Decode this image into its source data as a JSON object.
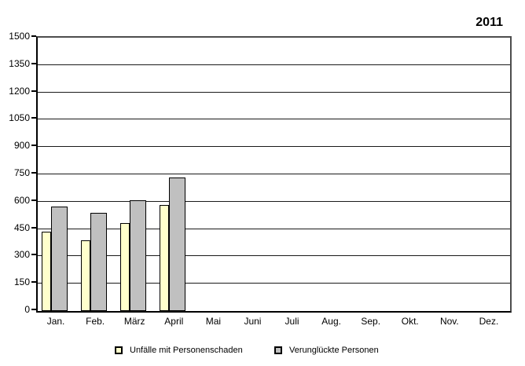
{
  "chart_data": {
    "type": "bar",
    "title": "2011",
    "categories": [
      "Jan.",
      "Feb.",
      "März",
      "April",
      "Mai",
      "Juni",
      "Juli",
      "Aug.",
      "Sep.",
      "Okt.",
      "Nov.",
      "Dez."
    ],
    "series": [
      {
        "name": "Unfälle mit Personenschaden",
        "color": "#FFFFCC",
        "values": [
          435,
          390,
          485,
          580,
          null,
          null,
          null,
          null,
          null,
          null,
          null,
          null
        ]
      },
      {
        "name": "Verunglückte Personen",
        "color": "#C0C0C0",
        "values": [
          575,
          540,
          610,
          735,
          null,
          null,
          null,
          null,
          null,
          null,
          null,
          null
        ]
      }
    ],
    "xlabel": "",
    "ylabel": "",
    "ylim": [
      0,
      1500
    ],
    "ytick_step": 150,
    "grid": true,
    "legend_position": "bottom"
  }
}
